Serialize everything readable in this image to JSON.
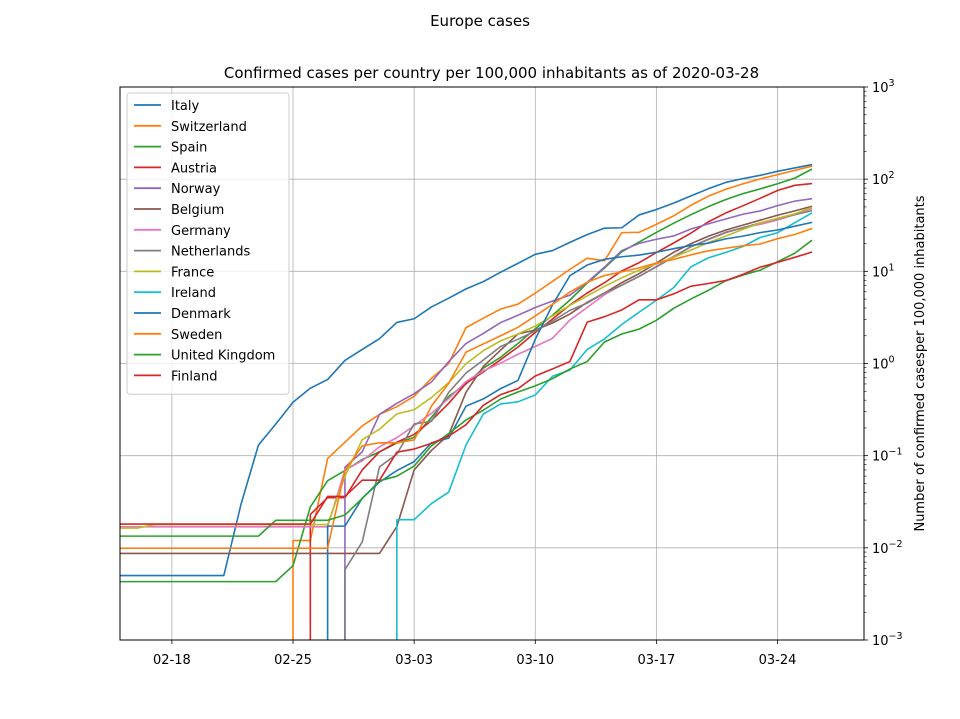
{
  "figure": {
    "suptitle": "Europe cases"
  },
  "chart_data": {
    "type": "line",
    "title": "Confirmed cases per country per 100,000 inhabitants as of 2020-03-28",
    "xlabel": "",
    "ylabel": "Number of confirmed casesper 100,000 inhabitants",
    "yscale": "log",
    "ylim": [
      0.001,
      1000
    ],
    "xlim": [
      "2020-02-15",
      "2020-03-29"
    ],
    "grid": true,
    "legend_position": "upper-left",
    "x_ticks": [
      {
        "date": "2020-02-18",
        "label": "02-18"
      },
      {
        "date": "2020-02-25",
        "label": "02-25"
      },
      {
        "date": "2020-03-03",
        "label": "03-03"
      },
      {
        "date": "2020-03-10",
        "label": "03-10"
      },
      {
        "date": "2020-03-17",
        "label": "03-17"
      },
      {
        "date": "2020-03-24",
        "label": "03-24"
      }
    ],
    "y_ticks": [
      {
        "value": 0.001,
        "base": "10",
        "exp": "−3"
      },
      {
        "value": 0.01,
        "base": "10",
        "exp": "−2"
      },
      {
        "value": 0.1,
        "base": "10",
        "exp": "−1"
      },
      {
        "value": 1,
        "base": "10",
        "exp": "0"
      },
      {
        "value": 10,
        "base": "10",
        "exp": "1"
      },
      {
        "value": 100,
        "base": "10",
        "exp": "2"
      },
      {
        "value": 1000,
        "base": "10",
        "exp": "3"
      }
    ],
    "dates": [
      "2020-02-15",
      "2020-02-16",
      "2020-02-17",
      "2020-02-18",
      "2020-02-19",
      "2020-02-20",
      "2020-02-21",
      "2020-02-22",
      "2020-02-23",
      "2020-02-24",
      "2020-02-25",
      "2020-02-26",
      "2020-02-27",
      "2020-02-28",
      "2020-02-29",
      "2020-03-01",
      "2020-03-02",
      "2020-03-03",
      "2020-03-04",
      "2020-03-05",
      "2020-03-06",
      "2020-03-07",
      "2020-03-08",
      "2020-03-09",
      "2020-03-10",
      "2020-03-11",
      "2020-03-12",
      "2020-03-13",
      "2020-03-14",
      "2020-03-15",
      "2020-03-16",
      "2020-03-17",
      "2020-03-18",
      "2020-03-19",
      "2020-03-20",
      "2020-03-21",
      "2020-03-22",
      "2020-03-23",
      "2020-03-24",
      "2020-03-25",
      "2020-03-26",
      "2020-03-27",
      "2020-03-28"
    ],
    "series": [
      {
        "name": "Italy",
        "color": "#1f77b4",
        "values": [
          0.005,
          0.005,
          0.005,
          0.005,
          0.005,
          0.005,
          0.005,
          0.03,
          0.13,
          0.22,
          0.38,
          0.54,
          0.67,
          1.08,
          1.42,
          1.86,
          2.79,
          3.06,
          4.11,
          5.11,
          6.45,
          7.73,
          9.78,
          12.2,
          15.3,
          16.8,
          20.6,
          25.0,
          29.4,
          29.7,
          40.9,
          46.8,
          54.9,
          65.8,
          78.6,
          92.1,
          101.4,
          110.1,
          121.7,
          132.3,
          144.1,
          null,
          null
        ]
      },
      {
        "name": "Switzerland",
        "color": "#ff7f0e",
        "values": [
          null,
          null,
          null,
          null,
          null,
          null,
          null,
          null,
          null,
          null,
          0.012,
          0.012,
          0.093,
          0.14,
          0.21,
          0.28,
          0.34,
          0.44,
          0.69,
          1.0,
          2.45,
          3.1,
          3.9,
          4.4,
          5.8,
          7.8,
          10.5,
          13.9,
          13.0,
          26.3,
          26.5,
          32.3,
          40.0,
          52.1,
          65.4,
          77.6,
          89.0,
          100.7,
          112.1,
          124.5,
          138.8,
          null,
          null
        ]
      },
      {
        "name": "Spain",
        "color": "#2ca02c",
        "values": [
          0.0043,
          0.0043,
          0.0043,
          0.0043,
          0.0043,
          0.0043,
          0.0043,
          0.0043,
          0.0043,
          0.0043,
          0.0064,
          0.0278,
          0.0536,
          0.0689,
          0.0908,
          0.11,
          0.137,
          0.158,
          0.26,
          0.44,
          0.6,
          0.89,
          1.17,
          1.65,
          2.38,
          3.34,
          4.87,
          7.47,
          10.87,
          16.3,
          20.8,
          26.4,
          33.3,
          41.2,
          50.3,
          60.0,
          69.6,
          78.4,
          89.1,
          102.6,
          128.9,
          null,
          null
        ]
      },
      {
        "name": "Austria",
        "color": "#d62728",
        "values": [
          null,
          null,
          null,
          null,
          null,
          null,
          null,
          null,
          null,
          null,
          null,
          0.023,
          0.035,
          0.035,
          0.07,
          0.11,
          0.14,
          0.17,
          0.24,
          0.37,
          0.61,
          0.81,
          1.1,
          1.51,
          2.17,
          3.04,
          4.31,
          5.82,
          7.52,
          10.1,
          12.4,
          16.0,
          20.3,
          26.0,
          34.4,
          42.9,
          51.4,
          62.0,
          75.4,
          85.8,
          89.6,
          null,
          null
        ]
      },
      {
        "name": "Norway",
        "color": "#9467bd",
        "values": [
          null,
          null,
          null,
          null,
          null,
          null,
          null,
          null,
          null,
          null,
          null,
          null,
          null,
          0.075,
          0.11,
          0.28,
          0.37,
          0.47,
          0.63,
          1.05,
          1.65,
          2.12,
          2.78,
          3.34,
          4.05,
          4.76,
          5.51,
          7.59,
          11.1,
          16.8,
          20.1,
          22.3,
          24.2,
          28.8,
          32.7,
          37.0,
          41.6,
          45.2,
          51.6,
          57.8,
          61.4,
          null,
          null
        ]
      },
      {
        "name": "Belgium",
        "color": "#8c564b",
        "values": [
          0.0087,
          0.0087,
          0.0087,
          0.0087,
          0.0087,
          0.0087,
          0.0087,
          0.0087,
          0.0087,
          0.0087,
          0.0087,
          0.0087,
          0.0087,
          0.0087,
          0.0087,
          0.0087,
          0.017,
          0.07,
          0.114,
          0.169,
          0.489,
          0.93,
          1.4,
          2.09,
          2.31,
          2.75,
          3.44,
          4.61,
          5.82,
          7.54,
          9.42,
          12.3,
          16.1,
          20.0,
          24.0,
          28.0,
          31.7,
          35.9,
          40.6,
          45.3,
          50.8,
          null,
          null
        ]
      },
      {
        "name": "Germany",
        "color": "#e377c2",
        "values": [
          0.0169,
          0.0169,
          0.0169,
          0.0169,
          0.0169,
          0.0169,
          0.0169,
          0.0169,
          0.0169,
          0.0169,
          0.0169,
          0.0169,
          0.0169,
          0.0699,
          0.0879,
          0.125,
          0.157,
          0.211,
          0.288,
          0.417,
          0.637,
          0.832,
          1.01,
          1.26,
          1.53,
          1.88,
          2.96,
          4.05,
          5.58,
          7.09,
          8.8,
          11.3,
          14.6,
          18.5,
          22.1,
          26.2,
          29.7,
          32.3,
          36.1,
          41.2,
          48.0,
          null,
          null
        ]
      },
      {
        "name": "Netherlands",
        "color": "#7f7f7f",
        "values": [
          null,
          null,
          null,
          null,
          null,
          null,
          null,
          null,
          null,
          null,
          null,
          null,
          null,
          0.0058,
          0.0116,
          0.0757,
          0.104,
          0.221,
          0.236,
          0.486,
          0.789,
          1.09,
          1.53,
          1.83,
          2.25,
          2.89,
          3.77,
          4.52,
          5.81,
          7.07,
          8.81,
          11.2,
          14.3,
          18.5,
          22.3,
          26.5,
          29.7,
          33.5,
          37.3,
          41.1,
          45.6,
          null,
          null
        ]
      },
      {
        "name": "France",
        "color": "#bcbd22",
        "values": [
          0.0164,
          0.0164,
          0.0179,
          0.0179,
          0.0179,
          0.0179,
          0.0179,
          0.0179,
          0.0179,
          0.0179,
          0.0179,
          0.0179,
          0.0179,
          0.0597,
          0.149,
          0.194,
          0.284,
          0.315,
          0.427,
          0.62,
          0.994,
          1.38,
          1.76,
          2.09,
          2.55,
          3.28,
          4.28,
          5.41,
          6.86,
          8.5,
          10.3,
          12.1,
          14.2,
          17.0,
          20.5,
          24.1,
          28.5,
          33.4,
          37.6,
          42.0,
          49.6,
          null,
          null
        ]
      },
      {
        "name": "Ireland",
        "color": "#17becf",
        "values": [
          null,
          null,
          null,
          null,
          null,
          null,
          null,
          null,
          null,
          null,
          null,
          null,
          null,
          null,
          null,
          null,
          0.0202,
          0.0202,
          0.0302,
          0.0403,
          0.131,
          0.283,
          0.364,
          0.384,
          0.455,
          0.727,
          0.848,
          1.42,
          1.85,
          2.65,
          3.6,
          4.86,
          6.65,
          11.2,
          14.0,
          16.0,
          18.6,
          23.3,
          26.2,
          33.7,
          43.1,
          null,
          null
        ]
      },
      {
        "name": "Denmark",
        "color": "#1f77b4",
        "values": [
          null,
          null,
          null,
          null,
          null,
          null,
          null,
          null,
          null,
          null,
          null,
          null,
          0.0172,
          0.0172,
          0.0345,
          0.0517,
          0.0689,
          0.0862,
          0.138,
          0.155,
          0.345,
          0.413,
          0.534,
          0.655,
          1.83,
          4.34,
          8.96,
          11.7,
          13.5,
          14.4,
          15.0,
          16.1,
          17.6,
          19.1,
          20.2,
          22.5,
          24.1,
          26.3,
          28.1,
          30.9,
          34.0,
          null,
          null
        ]
      },
      {
        "name": "Sweden",
        "color": "#ff7f0e",
        "values": [
          0.0099,
          0.0099,
          0.0099,
          0.0099,
          0.0099,
          0.0099,
          0.0099,
          0.0099,
          0.0099,
          0.0099,
          0.0099,
          0.0099,
          0.0099,
          0.069,
          0.128,
          0.138,
          0.138,
          0.148,
          0.345,
          0.611,
          1.33,
          1.63,
          2.0,
          2.47,
          3.28,
          4.39,
          5.96,
          7.61,
          9.0,
          9.87,
          10.9,
          12.3,
          13.5,
          15.1,
          16.7,
          17.8,
          18.9,
          19.8,
          22.6,
          25.1,
          29.2,
          null,
          null
        ]
      },
      {
        "name": "United Kingdom",
        "color": "#2ca02c",
        "values": [
          0.0134,
          0.0134,
          0.0134,
          0.0134,
          0.0134,
          0.0134,
          0.0134,
          0.0134,
          0.0134,
          0.0199,
          0.0199,
          0.0199,
          0.0199,
          0.0227,
          0.0343,
          0.0534,
          0.0599,
          0.0771,
          0.128,
          0.174,
          0.244,
          0.312,
          0.412,
          0.491,
          0.572,
          0.685,
          0.871,
          1.05,
          1.71,
          2.09,
          2.36,
          2.94,
          3.97,
          5.02,
          6.21,
          7.89,
          9.1,
          10.3,
          12.7,
          15.7,
          21.8,
          null,
          null
        ]
      },
      {
        "name": "Finland",
        "color": "#d62728",
        "values": [
          0.0181,
          0.0181,
          0.0181,
          0.0181,
          0.0181,
          0.0181,
          0.0181,
          0.0181,
          0.0181,
          0.0181,
          0.0181,
          0.0181,
          0.0361,
          0.0361,
          0.0542,
          0.0542,
          0.109,
          0.118,
          0.136,
          0.163,
          0.217,
          0.352,
          0.46,
          0.533,
          0.732,
          0.875,
          1.05,
          2.81,
          3.22,
          3.81,
          4.91,
          4.91,
          5.69,
          6.9,
          7.38,
          7.94,
          9.27,
          11.1,
          12.5,
          14.2,
          16.2,
          null,
          null
        ]
      }
    ]
  }
}
